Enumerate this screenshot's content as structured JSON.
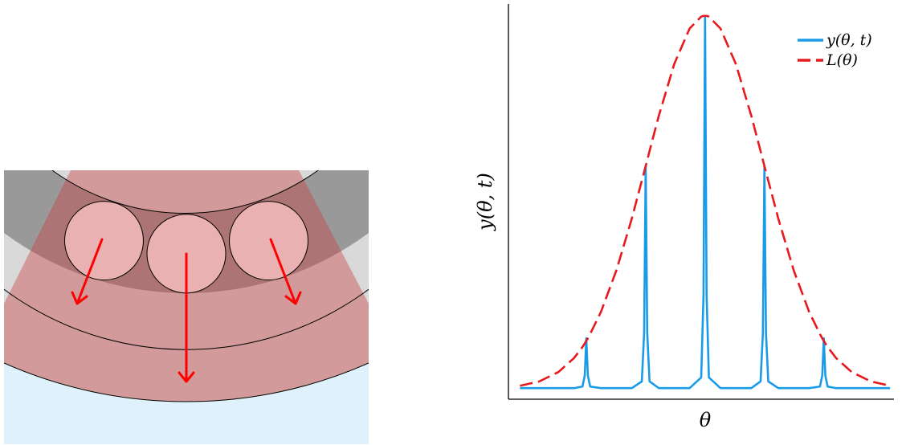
{
  "chart_data": {
    "type": "line",
    "xlabel": "θ",
    "ylabel": "y(θ, t)",
    "xlim": [
      0,
      100
    ],
    "ylim": [
      0,
      100
    ],
    "legend": "upper right",
    "grid": false,
    "x": [
      3,
      8,
      13,
      17,
      19.2,
      19.8,
      20.2,
      20.6,
      21.2,
      24,
      28,
      32,
      34.6,
      35.2,
      35.6,
      36,
      36.6,
      39,
      43,
      47,
      50,
      50.6,
      51,
      51.4,
      52,
      55,
      59,
      63,
      65.4,
      66,
      66.4,
      66.8,
      67.4,
      70,
      74,
      78,
      80.8,
      81.4,
      81.8,
      82.2,
      82.8,
      85,
      89,
      94,
      99
    ],
    "series": [
      {
        "name": "y(θ, t)",
        "color": "#1a9bea",
        "linestyle": "solid",
        "values": [
          2.8,
          2.8,
          2.8,
          2.8,
          3.2,
          6.0,
          15.4,
          6.0,
          3.2,
          2.8,
          2.8,
          2.8,
          4.5,
          16.8,
          59,
          16.8,
          4.5,
          2.8,
          2.8,
          2.8,
          5.5,
          26.4,
          97,
          26.4,
          5.5,
          2.8,
          2.8,
          2.8,
          4.5,
          16.8,
          59,
          16.8,
          4.5,
          2.8,
          2.8,
          2.8,
          3.2,
          6.0,
          15.4,
          6.0,
          3.2,
          2.8,
          2.8,
          2.8,
          2.8
        ]
      },
      {
        "name": "L(θ)",
        "color": "#e8191c",
        "linestyle": "dashed",
        "values": [
          3.4,
          4.5,
          6.9,
          10.4,
          13.2,
          14.1,
          14.8,
          15.4,
          16.5,
          22.1,
          32.6,
          45.7,
          55.3,
          57.5,
          59.0,
          60.5,
          62.8,
          71.7,
          84.8,
          93.8,
          96.8,
          97.0,
          97.0,
          97.0,
          96.8,
          93.8,
          84.8,
          71.7,
          62.8,
          60.5,
          59.0,
          57.5,
          55.3,
          45.7,
          32.6,
          22.1,
          16.5,
          15.4,
          14.8,
          14.1,
          13.2,
          10.4,
          6.9,
          4.5,
          3.4
        ]
      }
    ]
  }
}
